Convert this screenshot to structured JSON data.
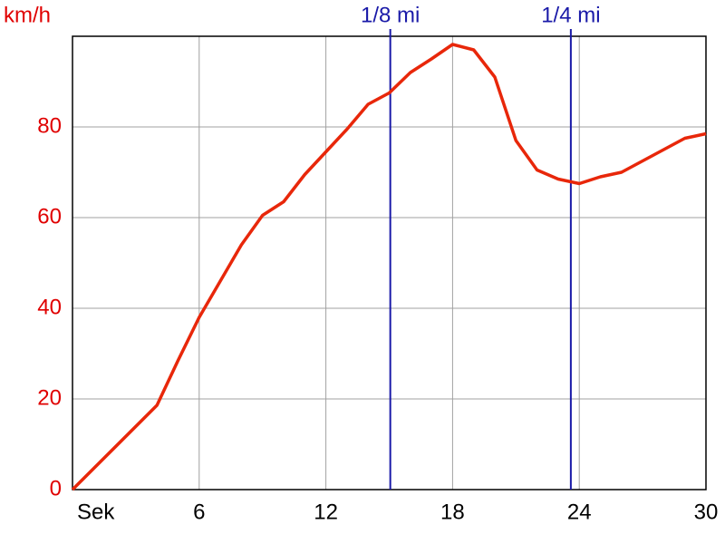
{
  "chart_data": {
    "type": "line",
    "y_label": "km/h",
    "x": [
      0,
      4,
      5,
      6,
      7,
      8,
      9,
      10,
      11,
      12,
      13,
      14,
      15,
      16,
      17,
      18,
      19,
      20,
      21,
      22,
      23,
      24,
      25,
      26,
      27,
      28,
      29,
      30
    ],
    "series": [
      {
        "color": "#e8270a",
        "values": [
          0,
          18.6,
          28.5,
          38,
          46,
          54,
          60.5,
          63.5,
          69.5,
          74.5,
          79.5,
          85,
          87.5,
          92,
          95,
          98.2,
          97,
          91,
          77,
          70.5,
          68.5,
          67.5,
          69,
          70,
          72.5,
          75,
          77.5,
          78.5
        ]
      }
    ],
    "xlim": [
      0,
      30
    ],
    "ylim": [
      0,
      100
    ],
    "xticks": [
      {
        "value": 0,
        "label": "Sek"
      },
      6,
      12,
      18,
      24,
      30
    ],
    "yticks": [
      0,
      20,
      40,
      60,
      80
    ],
    "grid": true,
    "markers": [
      {
        "x": 15.05,
        "label": "1/8 mi",
        "color": "#1a1aa8"
      },
      {
        "x": 23.6,
        "label": "1/4 mi",
        "color": "#1a1aa8"
      }
    ]
  }
}
